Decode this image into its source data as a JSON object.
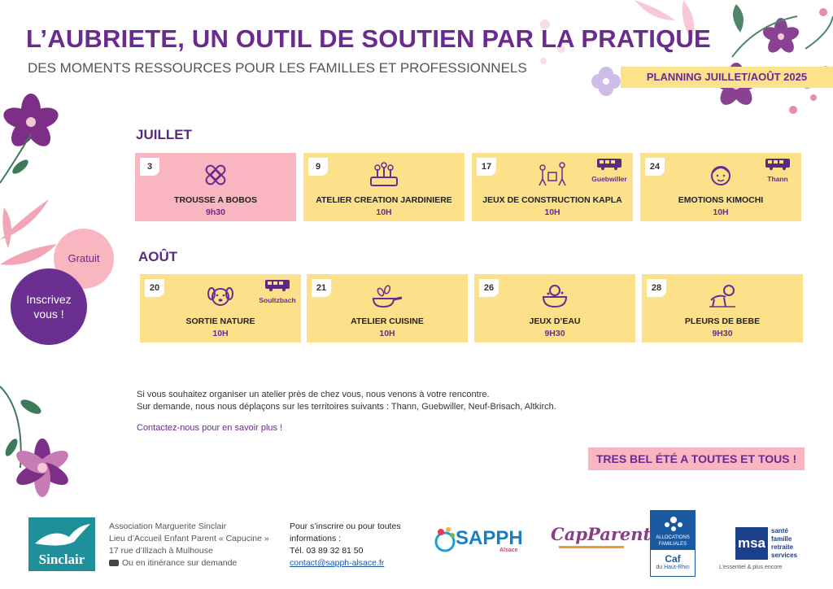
{
  "header": {
    "title": "L’AUBRIETE, UN OUTIL DE SOUTIEN PAR LA PRATIQUE",
    "subtitle": "DES MOMENTS RESSOURCES POUR LES FAMILLES ET PROFESSIONNELS",
    "planning": "PLANNING JUILLET/AOÛT 2025"
  },
  "july": {
    "label": "JUILLET",
    "events": [
      {
        "day": "3",
        "name": "TROUSSE A BOBOS",
        "time": "9h30",
        "icon": "bandage-icon",
        "location": ""
      },
      {
        "day": "9",
        "name": "ATELIER CREATION JARDINIERE",
        "time": "10H",
        "icon": "planter-icon",
        "location": ""
      },
      {
        "day": "17",
        "name": "JEUX DE CONSTRUCTION KAPLA",
        "time": "10H",
        "icon": "kids-playing-icon",
        "location": "Guebwiller"
      },
      {
        "day": "24",
        "name": "EMOTIONS KIMOCHI",
        "time": "10H",
        "icon": "child-face-icon",
        "location": "Thann"
      }
    ]
  },
  "august": {
    "label": "AOÛT",
    "events": [
      {
        "day": "20",
        "name": "SORTIE NATURE",
        "time": "10H",
        "icon": "dog-icon",
        "location": "Soultzbach"
      },
      {
        "day": "21",
        "name": "ATELIER CUISINE",
        "time": "10H",
        "icon": "frying-pan-icon",
        "location": ""
      },
      {
        "day": "26",
        "name": "JEUX D’EAU",
        "time": "9H30",
        "icon": "baby-bath-icon",
        "location": ""
      },
      {
        "day": "28",
        "name": "PLEURS DE BEBE",
        "time": "9H30",
        "icon": "crawling-baby-icon",
        "location": ""
      }
    ]
  },
  "badges": {
    "gratuit": "Gratuit",
    "inscrivez_line1": "Inscrivez",
    "inscrivez_line2": "vous !"
  },
  "info": {
    "line1": "Si vous souhaitez organiser un atelier près de chez vous, nous venons à votre rencontre.",
    "line2": "Sur demande, nous nous déplaçons sur les territoires suivants : Thann, Guebwiller, Neuf-Brisach, Altkirch.",
    "contact": "Contactez-nous pour en savoir plus !"
  },
  "ete": "TRES BEL ÉTÉ A TOUTES ET TOUS !",
  "footer": {
    "sinclair_logo_text": "Sinclair",
    "assoc_line1": "Association Marguerite Sinclair",
    "assoc_line2": "Lieu d’Accueil Enfant Parent « Capucine »",
    "assoc_line3": "17 rue d’Illzach à Mulhouse",
    "assoc_line4": "Ou en itinérance sur demande",
    "inscribe_line1": "Pour s’inscrire ou pour toutes",
    "inscribe_line2": "informations :",
    "phone": "Tél. 03 89 32 81 50",
    "email": "contact@sapph-alsace.fr",
    "sapph_logo": "SAPPH",
    "sapph_sub": "Alsace",
    "capparents_logo": "CapParents",
    "caf_line1": "ALLOCATIONS",
    "caf_line2": "FAMILIALES",
    "caf_line3": "Caf",
    "caf_line4": "du Haut-Rhin",
    "msa_logo": "msa",
    "msa_line1": "santé",
    "msa_line2": "famille",
    "msa_line3": "retraite",
    "msa_line4": "services",
    "msa_tagline": "L’essentiel & plus encore"
  }
}
